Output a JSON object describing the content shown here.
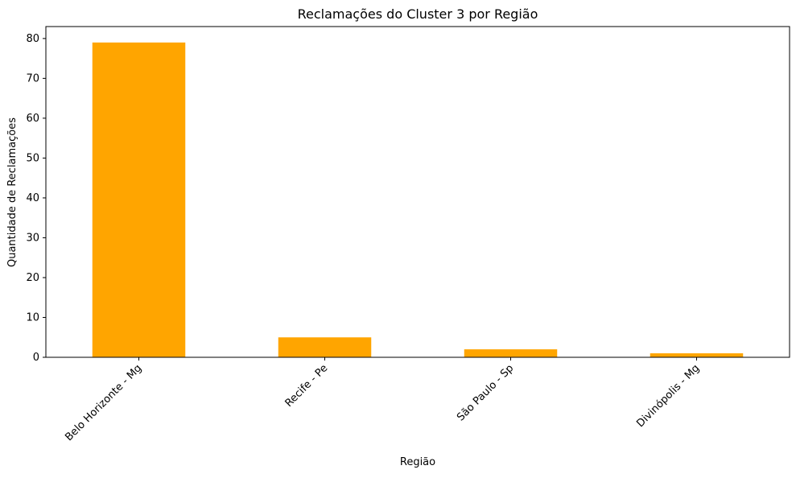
{
  "chart_data": {
    "type": "bar",
    "title": "Reclamações do Cluster 3 por Região",
    "xlabel": "Região",
    "ylabel": "Quantidade de Reclamações",
    "categories": [
      "Belo Horizonte - Mg",
      "Recife - Pe",
      "São Paulo - Sp",
      "Divinópolis - Mg"
    ],
    "values": [
      79,
      5,
      2,
      1
    ],
    "ylim": [
      0,
      83
    ],
    "yticks": [
      0,
      10,
      20,
      30,
      40,
      50,
      60,
      70,
      80
    ],
    "grid": false,
    "bar_color": "#ffa500"
  }
}
